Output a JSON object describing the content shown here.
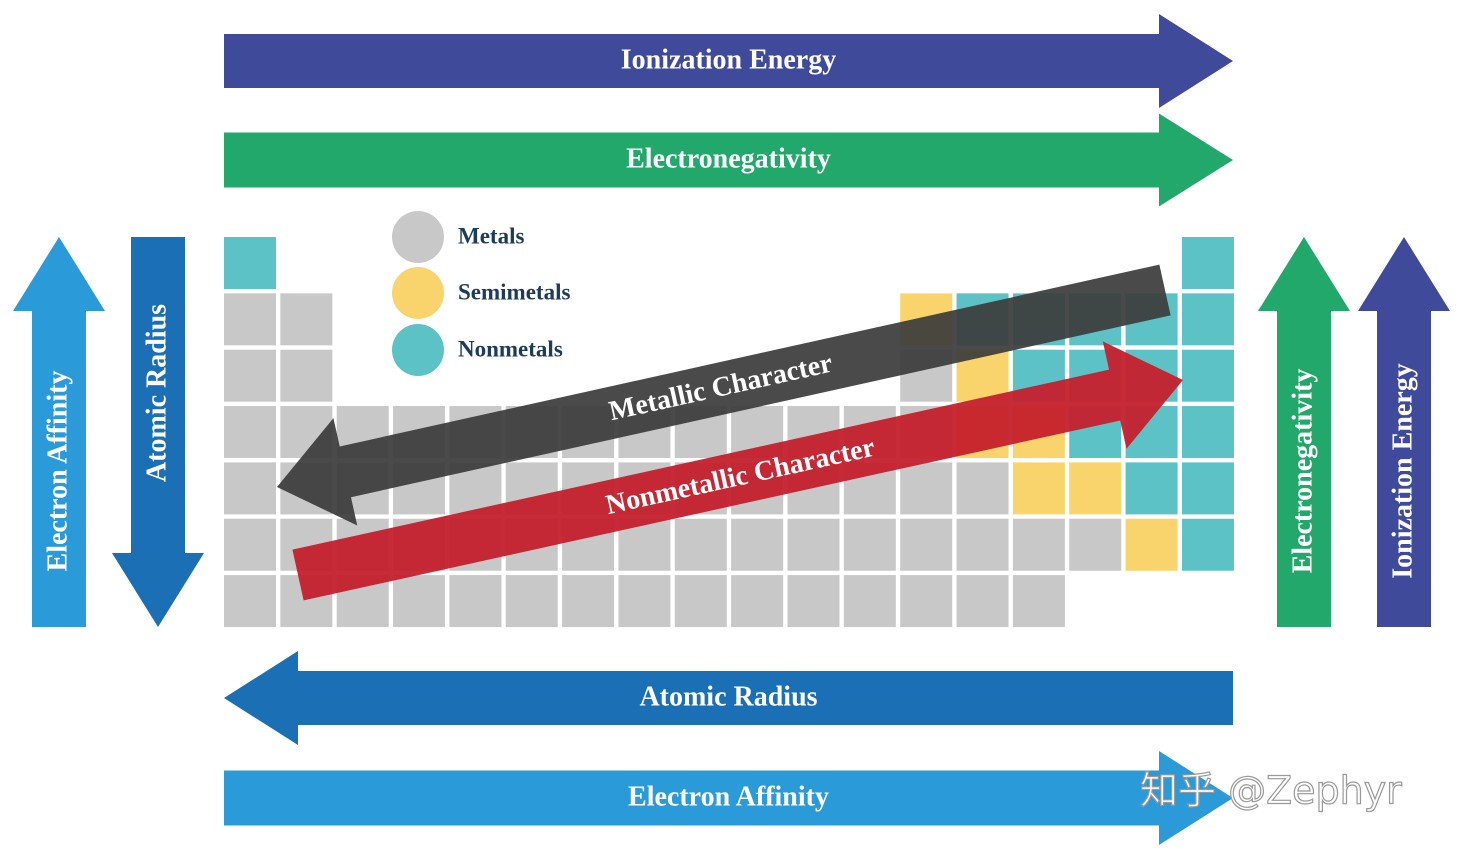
{
  "arrows": [
    {
      "label": "Ionization Energy"
    },
    {
      "label": "Electronegativity"
    },
    {
      "label": "Atomic Radius"
    },
    {
      "label": "Electron Affinity"
    },
    {
      "label": "Electron Affinity"
    },
    {
      "label": "Atomic Radius"
    },
    {
      "label": "Electronegativity"
    },
    {
      "label": "Ionization Energy"
    },
    {
      "label": "Metallic Character"
    },
    {
      "label": "Nonmetallic Character"
    }
  ],
  "legend": [
    {
      "label": "Metals"
    },
    {
      "label": "Semimetals"
    },
    {
      "label": "Nonmetals"
    }
  ],
  "watermark": "知乎 @Zephyr"
}
